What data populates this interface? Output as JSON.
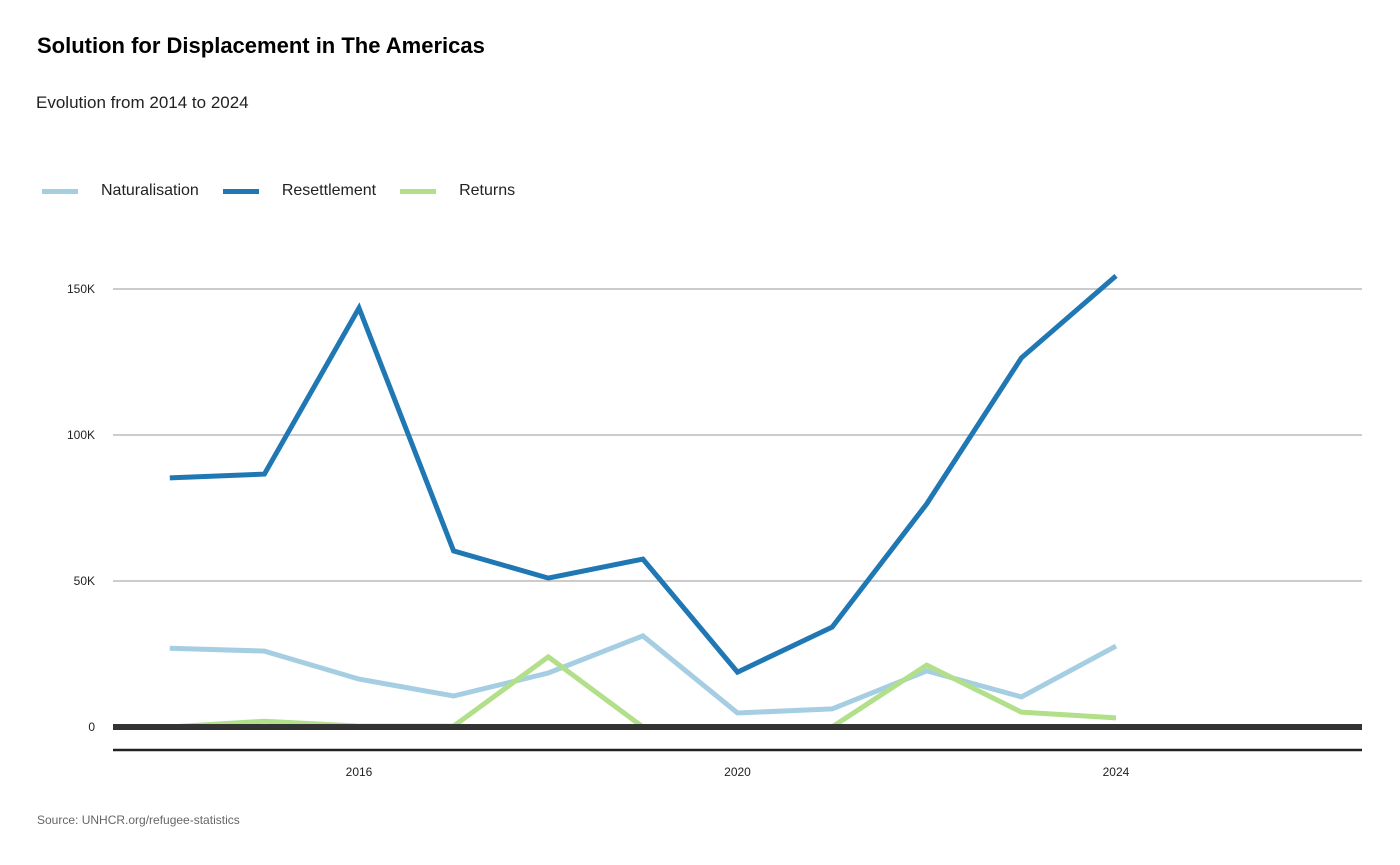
{
  "chart_data": {
    "type": "line",
    "title": "Solution for Displacement in The Americas",
    "subtitle": "Evolution from 2014 to 2024",
    "source": "Source: UNHCR.org/refugee-statistics",
    "xlabel": "",
    "ylabel": "",
    "x": [
      2014,
      2015,
      2016,
      2017,
      2018,
      2019,
      2020,
      2021,
      2022,
      2023,
      2024
    ],
    "xlim": [
      2013.4,
      2026.6
    ],
    "ylim": [
      0,
      160000
    ],
    "x_ticks": [
      2016,
      2020,
      2024
    ],
    "x_tick_labels": [
      "2016",
      "2020",
      "2024"
    ],
    "y_ticks": [
      0,
      50000,
      100000,
      150000
    ],
    "y_tick_labels": [
      "0",
      "50K",
      "100K",
      "150K"
    ],
    "grid": true,
    "legend_position": "top-left",
    "series": [
      {
        "name": "Naturalisation",
        "color": "#a6cee3",
        "values": [
          27000,
          26000,
          16400,
          10600,
          18500,
          31200,
          4800,
          6200,
          19200,
          10300,
          27700
        ]
      },
      {
        "name": "Resettlement",
        "color": "#1f78b4",
        "values": [
          85300,
          86600,
          143500,
          60300,
          51000,
          57500,
          18800,
          34200,
          76400,
          126400,
          154500
        ]
      },
      {
        "name": "Returns",
        "color": "#b2df8a",
        "values": [
          0,
          2000,
          300,
          300,
          24000,
          0,
          0,
          0,
          21200,
          5100,
          3100
        ]
      }
    ]
  }
}
